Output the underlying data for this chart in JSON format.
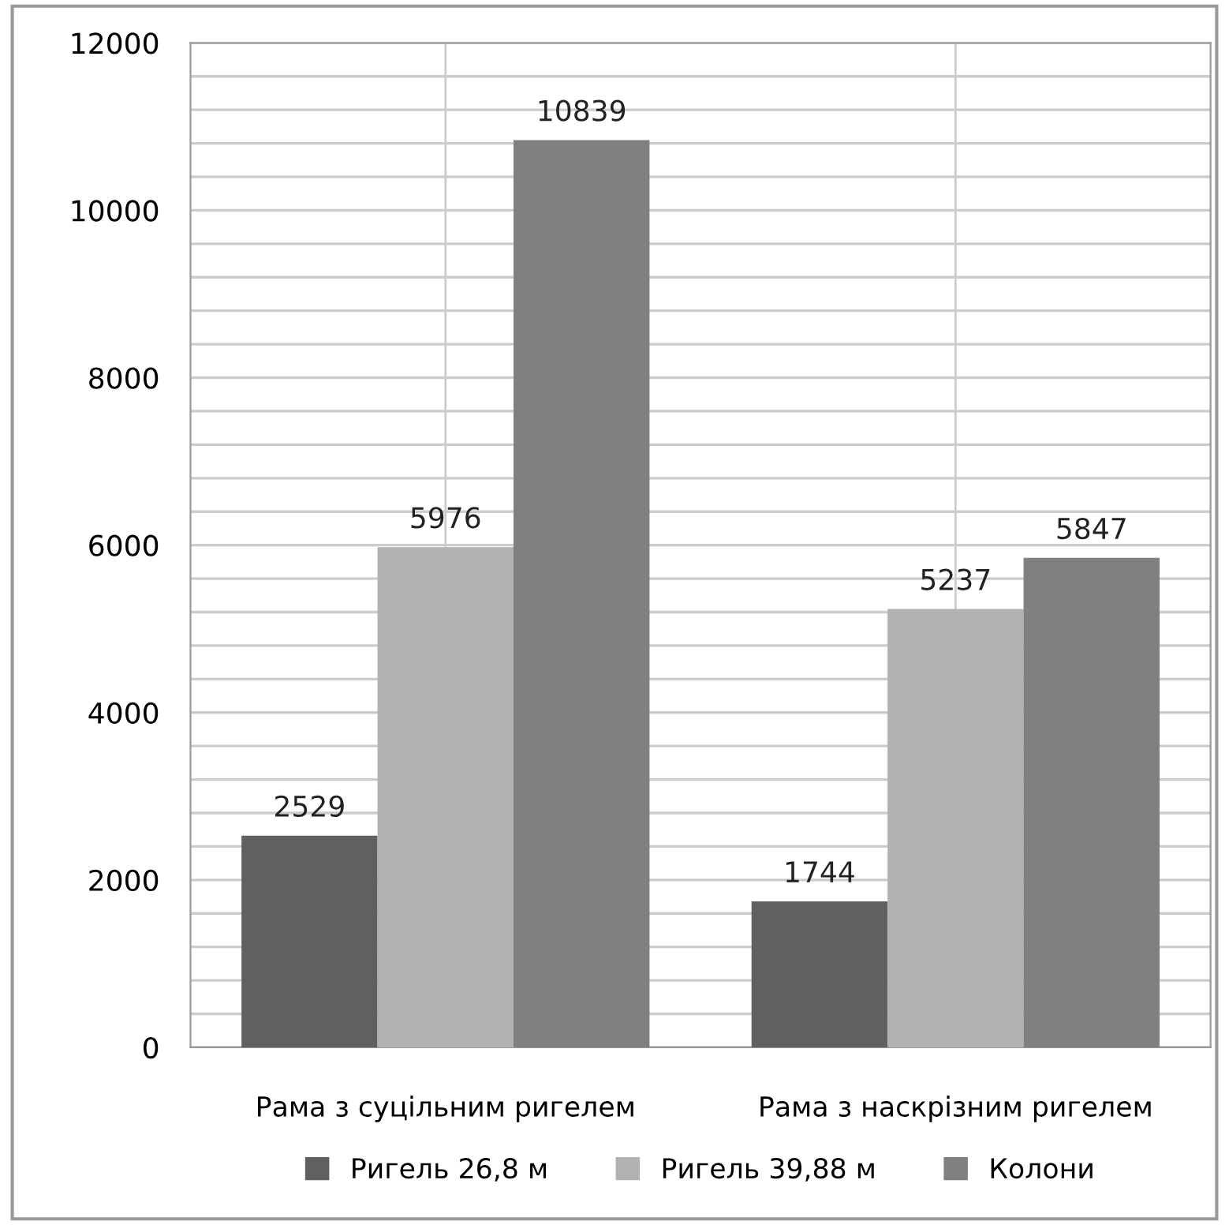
{
  "chart_data": {
    "type": "bar",
    "categories": [
      "Рама з суцільним ригелем",
      "Рама з наскрізним ригелем"
    ],
    "series": [
      {
        "name": "Ригель 26,8 м",
        "color": "#606060",
        "values": [
          2529,
          1744
        ]
      },
      {
        "name": "Ригель 39,88 м",
        "color": "#b2b2b2",
        "values": [
          5976,
          5237
        ]
      },
      {
        "name": "Колони",
        "color": "#808080",
        "values": [
          10839,
          5847
        ]
      }
    ],
    "ylim": [
      0,
      12000
    ],
    "yticks": [
      0,
      {
        "value": 400,
        "label": null
      },
      {
        "value": 800,
        "label": null
      },
      {
        "value": 1200,
        "label": null
      },
      {
        "value": 1600,
        "label": null
      },
      2000,
      {
        "value": 2400,
        "label": null
      },
      {
        "value": 2800,
        "label": null
      },
      {
        "value": 3200,
        "label": null
      },
      {
        "value": 3600,
        "label": null
      },
      4000,
      {
        "value": 4400,
        "label": null
      },
      {
        "value": 4800,
        "label": null
      },
      {
        "value": 5200,
        "label": null
      },
      {
        "value": 5600,
        "label": null
      },
      6000,
      {
        "value": 6400,
        "label": null
      },
      {
        "value": 6800,
        "label": null
      },
      {
        "value": 7200,
        "label": null
      },
      {
        "value": 7600,
        "label": null
      },
      8000,
      {
        "value": 8400,
        "label": null
      },
      {
        "value": 8800,
        "label": null
      },
      {
        "value": 9200,
        "label": null
      },
      {
        "value": 9600,
        "label": null
      },
      10000,
      {
        "value": 10400,
        "label": null
      },
      {
        "value": 10800,
        "label": null
      },
      {
        "value": 11200,
        "label": null
      },
      {
        "value": 11600,
        "label": null
      },
      12000
    ],
    "grid": true,
    "data_labels": true,
    "legend": "bottom"
  }
}
